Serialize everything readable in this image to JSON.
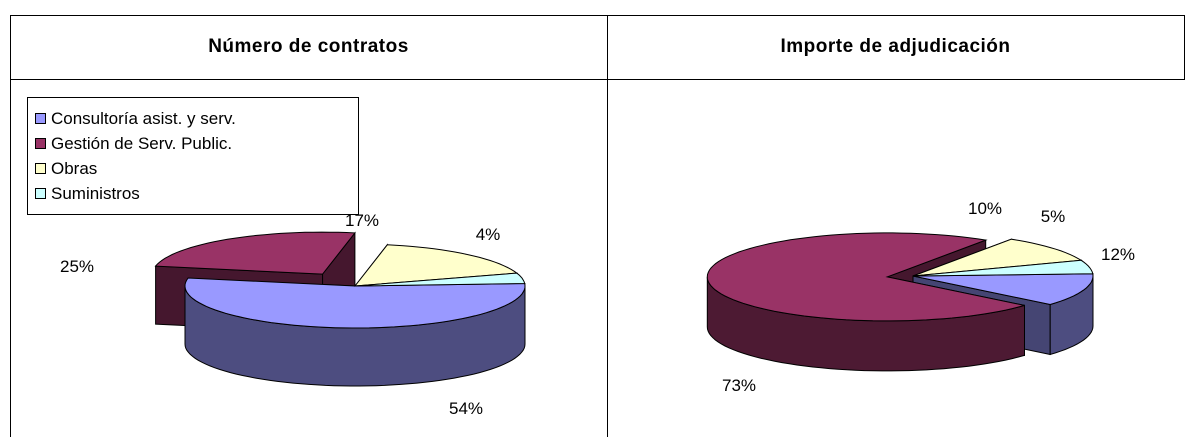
{
  "chart_data": [
    {
      "type": "pie",
      "title": "Número de contratos",
      "categories": [
        "Consultoría asist. y serv.",
        "Gestión de Serv. Public.",
        "Obras",
        "Suministros"
      ],
      "values": [
        54,
        25,
        17,
        4
      ],
      "value_labels": [
        "54%",
        "25%",
        "17%",
        "4%"
      ],
      "legend": "top-left",
      "exploded_slice": "Gestión de Serv. Public."
    },
    {
      "type": "pie",
      "title": "Importe de adjudicación",
      "categories": [
        "Consultoría asist. y serv.",
        "Gestión de Serv. Public.",
        "Obras",
        "Suministros"
      ],
      "values": [
        12,
        73,
        10,
        5
      ],
      "value_labels": [
        "12%",
        "73%",
        "10%",
        "5%"
      ],
      "exploded_slice": "Gestión de Serv. Public."
    }
  ],
  "colors": {
    "Consultoría asist. y serv.": "#9999FF",
    "Gestión de Serv. Public.": "#993366",
    "Obras": "#FFFFCC",
    "Suministros": "#CCFFFF"
  }
}
